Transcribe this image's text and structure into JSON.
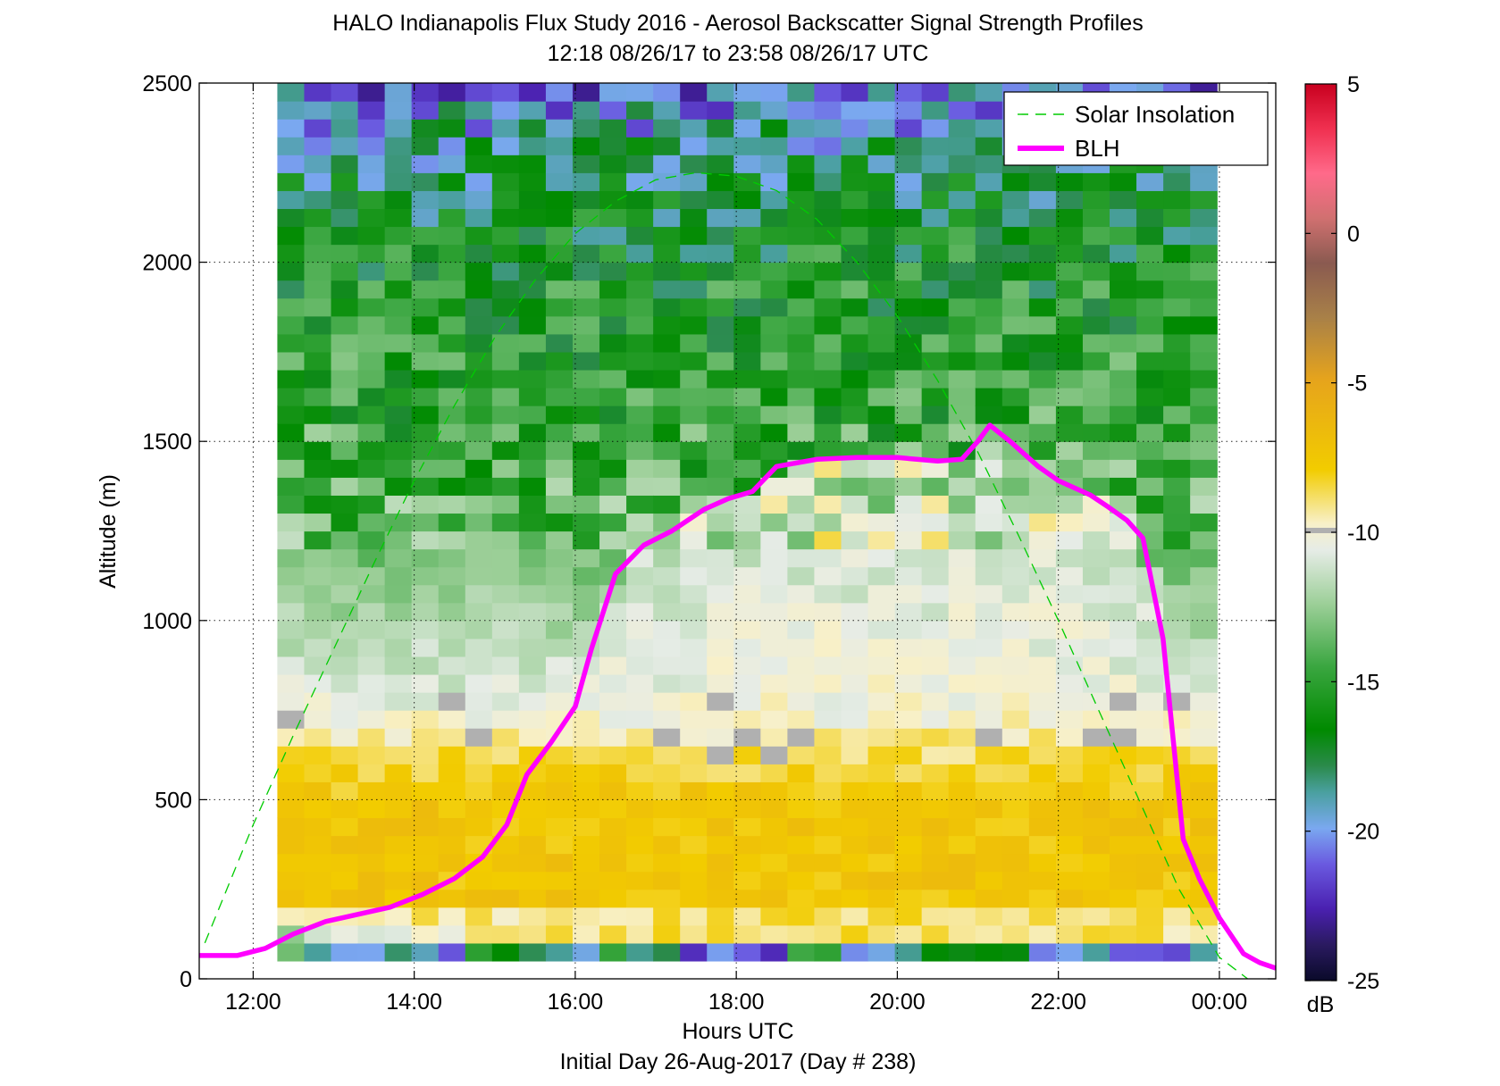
{
  "chart_data": {
    "type": "heatmap",
    "title": "HALO Indianapolis Flux Study 2016 - Aerosol Backscatter Signal Strength Profiles",
    "subtitle": "12:18 08/26/17 to 23:58 08/26/17  UTC",
    "xlabel": "Hours UTC",
    "xlabel2": "Initial Day 26-Aug-2017 (Day # 238)",
    "ylabel": "Altitude (m)",
    "xlim": [
      11.33,
      24.7
    ],
    "ylim": [
      0,
      2500
    ],
    "x_ticks": [
      {
        "value": 12,
        "label": "12:00"
      },
      {
        "value": 14,
        "label": "14:00"
      },
      {
        "value": 16,
        "label": "16:00"
      },
      {
        "value": 18,
        "label": "18:00"
      },
      {
        "value": 20,
        "label": "20:00"
      },
      {
        "value": 22,
        "label": "22:00"
      },
      {
        "value": 24,
        "label": "00:00"
      }
    ],
    "y_ticks": [
      0,
      500,
      1000,
      1500,
      2000,
      2500
    ],
    "grid": true,
    "grid_style": "dotted",
    "legend_placement": "top-right",
    "legend": [
      "Solar Insolation",
      "BLH"
    ],
    "colorbar": {
      "unit": "dB",
      "range": [
        -25,
        5
      ],
      "ticks": [
        5,
        0,
        -5,
        -10,
        -15,
        -20,
        -25
      ],
      "tick_labels": [
        "5",
        "0",
        "-5",
        "-10",
        "-15",
        "-20",
        "-25"
      ],
      "no_data_color": "#b0b0b0"
    },
    "heatmap": {
      "time_range": [
        12.3,
        23.97
      ],
      "altitude_range": [
        50,
        2500
      ],
      "approximate_profile": [
        {
          "alt": 100,
          "db": -14
        },
        {
          "alt": 200,
          "db": -7.5
        },
        {
          "alt": 500,
          "db": -7.5
        },
        {
          "alt": 650,
          "db": -9
        },
        {
          "alt": 750,
          "db": -10.5
        },
        {
          "alt": 1000,
          "db": -12
        },
        {
          "alt": 1300,
          "db": -14
        },
        {
          "alt": 1600,
          "db": -15
        },
        {
          "alt": 2000,
          "db": -16
        },
        {
          "alt": 2300,
          "db": -18
        },
        {
          "alt": 2500,
          "db": -21
        }
      ]
    },
    "series": [
      {
        "name": "Solar Insolation",
        "color": "#00cc00",
        "style": "dashed",
        "x": [
          11.4,
          12.0,
          12.5,
          13.0,
          13.5,
          14.0,
          14.5,
          15.0,
          15.5,
          16.0,
          16.5,
          17.0,
          17.5,
          18.0,
          18.5,
          19.0,
          19.5,
          20.0,
          20.5,
          21.0,
          21.5,
          22.0,
          22.5,
          23.0,
          23.5,
          24.0,
          24.35
        ],
        "y": [
          100,
          430,
          680,
          920,
          1160,
          1390,
          1600,
          1790,
          1950,
          2080,
          2170,
          2230,
          2250,
          2240,
          2200,
          2120,
          2000,
          1850,
          1670,
          1470,
          1240,
          1000,
          750,
          500,
          250,
          60,
          0
        ]
      },
      {
        "name": "BLH",
        "color": "#ff00ff",
        "style": "solid",
        "x": [
          11.33,
          11.8,
          12.15,
          12.5,
          12.9,
          13.3,
          13.7,
          14.1,
          14.5,
          14.85,
          15.15,
          15.4,
          15.7,
          16.0,
          16.2,
          16.5,
          16.85,
          17.2,
          17.6,
          17.9,
          18.2,
          18.5,
          19.0,
          19.5,
          20.0,
          20.5,
          20.8,
          21.0,
          21.15,
          21.4,
          21.75,
          22.0,
          22.4,
          22.6,
          22.85,
          23.05,
          23.3,
          23.55,
          23.75,
          24.0,
          24.3,
          24.5,
          24.7
        ],
        "y": [
          65,
          65,
          85,
          125,
          160,
          180,
          200,
          235,
          280,
          340,
          430,
          570,
          660,
          760,
          920,
          1130,
          1210,
          1250,
          1310,
          1340,
          1360,
          1430,
          1450,
          1455,
          1455,
          1445,
          1450,
          1500,
          1545,
          1500,
          1430,
          1390,
          1350,
          1320,
          1280,
          1230,
          950,
          390,
          280,
          170,
          70,
          45,
          30
        ]
      }
    ]
  }
}
